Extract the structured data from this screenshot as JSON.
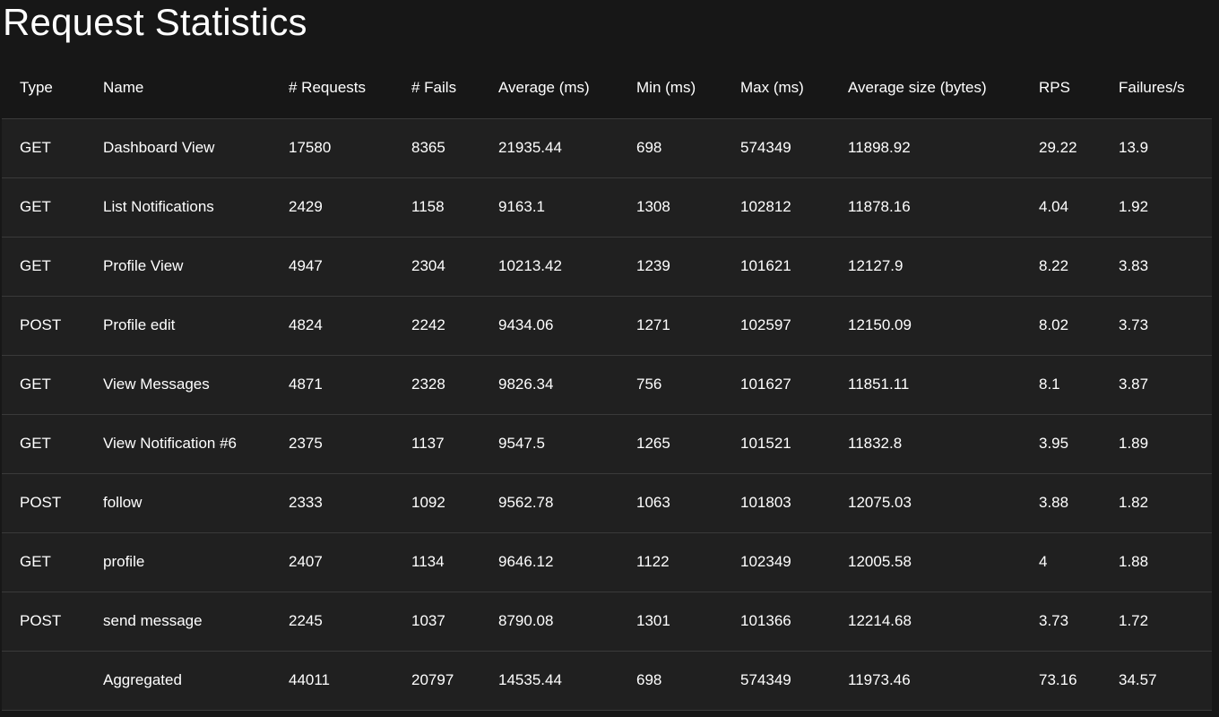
{
  "page": {
    "title": "Request Statistics"
  },
  "table": {
    "columns": [
      "Type",
      "Name",
      "# Requests",
      "# Fails",
      "Average (ms)",
      "Min (ms)",
      "Max (ms)",
      "Average size (bytes)",
      "RPS",
      "Failures/s"
    ],
    "rows": [
      {
        "type": "GET",
        "name": "Dashboard View",
        "requests": "17580",
        "fails": "8365",
        "avg": "21935.44",
        "min": "698",
        "max": "574349",
        "size": "11898.92",
        "rps": "29.22",
        "fps": "13.9"
      },
      {
        "type": "GET",
        "name": "List Notifications",
        "requests": "2429",
        "fails": "1158",
        "avg": "9163.1",
        "min": "1308",
        "max": "102812",
        "size": "11878.16",
        "rps": "4.04",
        "fps": "1.92"
      },
      {
        "type": "GET",
        "name": "Profile View",
        "requests": "4947",
        "fails": "2304",
        "avg": "10213.42",
        "min": "1239",
        "max": "101621",
        "size": "12127.9",
        "rps": "8.22",
        "fps": "3.83"
      },
      {
        "type": "POST",
        "name": "Profile edit",
        "requests": "4824",
        "fails": "2242",
        "avg": "9434.06",
        "min": "1271",
        "max": "102597",
        "size": "12150.09",
        "rps": "8.02",
        "fps": "3.73"
      },
      {
        "type": "GET",
        "name": "View Messages",
        "requests": "4871",
        "fails": "2328",
        "avg": "9826.34",
        "min": "756",
        "max": "101627",
        "size": "11851.11",
        "rps": "8.1",
        "fps": "3.87"
      },
      {
        "type": "GET",
        "name": "View Notification #6",
        "requests": "2375",
        "fails": "1137",
        "avg": "9547.5",
        "min": "1265",
        "max": "101521",
        "size": "11832.8",
        "rps": "3.95",
        "fps": "1.89"
      },
      {
        "type": "POST",
        "name": "follow",
        "requests": "2333",
        "fails": "1092",
        "avg": "9562.78",
        "min": "1063",
        "max": "101803",
        "size": "12075.03",
        "rps": "3.88",
        "fps": "1.82"
      },
      {
        "type": "GET",
        "name": "profile",
        "requests": "2407",
        "fails": "1134",
        "avg": "9646.12",
        "min": "1122",
        "max": "102349",
        "size": "12005.58",
        "rps": "4",
        "fps": "1.88"
      },
      {
        "type": "POST",
        "name": "send message",
        "requests": "2245",
        "fails": "1037",
        "avg": "8790.08",
        "min": "1301",
        "max": "101366",
        "size": "12214.68",
        "rps": "3.73",
        "fps": "1.72"
      },
      {
        "type": "",
        "name": "Aggregated",
        "requests": "44011",
        "fails": "20797",
        "avg": "14535.44",
        "min": "698",
        "max": "574349",
        "size": "11973.46",
        "rps": "73.16",
        "fps": "34.57"
      }
    ]
  }
}
